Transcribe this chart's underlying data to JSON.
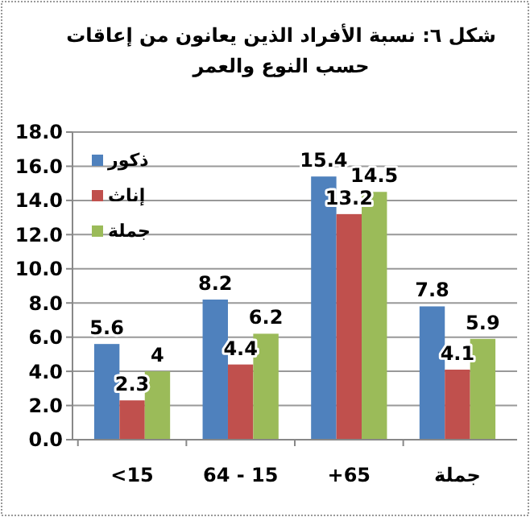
{
  "chart_data": {
    "type": "bar",
    "title": "شكل ٦: نسبة الأفراد الذين يعانون من إعاقات حسب النوع والعمر",
    "categories": [
      "<15",
      "64 - 15",
      "+65",
      "جملة"
    ],
    "series": [
      {
        "name": "ذكور",
        "color": "#4f81bd",
        "values": [
          5.6,
          8.2,
          15.4,
          7.8
        ],
        "value_labels": [
          "5.6",
          "8.2",
          "15.4",
          "7.8"
        ]
      },
      {
        "name": "إناث",
        "color": "#c0504d",
        "values": [
          2.3,
          4.4,
          13.2,
          4.1
        ],
        "value_labels": [
          "2.3",
          "4.4",
          "13.2",
          "4.1"
        ]
      },
      {
        "name": "جملة",
        "color": "#9bbb59",
        "values": [
          4,
          6.2,
          14.5,
          5.9
        ],
        "value_labels": [
          "4",
          "6.2",
          "14.5",
          "5.9"
        ]
      }
    ],
    "ylim": [
      0,
      18
    ],
    "yticks": [
      {
        "value": 0,
        "label": "0.0"
      },
      {
        "value": 2,
        "label": "2.0"
      },
      {
        "value": 4,
        "label": "4.0"
      },
      {
        "value": 6,
        "label": "6.0"
      },
      {
        "value": 8,
        "label": "8.0"
      },
      {
        "value": 10,
        "label": "10.0"
      },
      {
        "value": 12,
        "label": "12.0"
      },
      {
        "value": 14,
        "label": "14.0"
      },
      {
        "value": 16,
        "label": "16.0"
      },
      {
        "value": 18,
        "label": "18.0"
      }
    ],
    "grid": "y",
    "legend": "top left"
  }
}
